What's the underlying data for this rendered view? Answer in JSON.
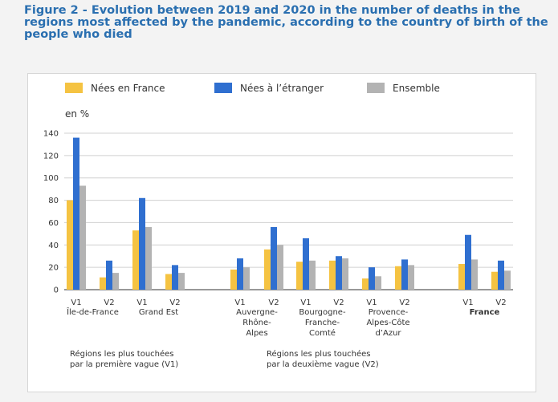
{
  "title": "Figure 2 - Evolution between 2019 and 2020 in the number of deaths in the regions most affected by the pandemic, according to the country of birth of the people who died",
  "chart_data": {
    "type": "bar",
    "unit_label": "en %",
    "ylim": [
      0,
      140
    ],
    "yticks": [
      0,
      20,
      40,
      60,
      80,
      100,
      120,
      140
    ],
    "grid": true,
    "legend_position": "top",
    "series": [
      {
        "name": "Nées en France",
        "color": "#f5c342",
        "values": [
          80,
          11,
          53,
          14,
          18,
          36,
          25,
          26,
          10,
          21,
          23,
          16
        ]
      },
      {
        "name": "Nées à l’étranger",
        "color": "#2f6fd0",
        "values": [
          136,
          26,
          82,
          22,
          28,
          56,
          46,
          30,
          20,
          27,
          49,
          26
        ]
      },
      {
        "name": "Ensemble",
        "color": "#b3b3b3",
        "values": [
          93,
          15,
          56,
          15,
          20,
          40,
          26,
          28,
          12,
          22,
          27,
          17
        ]
      }
    ],
    "categories": [
      "V1",
      "V2",
      "V1",
      "V2",
      "V1",
      "V2",
      "V1",
      "V2",
      "V1",
      "V2",
      "V1",
      "V2"
    ],
    "groups": [
      {
        "lines": [
          "Île-de-France"
        ],
        "bold": false
      },
      {
        "lines": [
          "Grand Est"
        ],
        "bold": false
      },
      {
        "lines": [
          "Auvergne-",
          "Rhône-",
          "Alpes"
        ],
        "bold": false
      },
      {
        "lines": [
          "Bourgogne-",
          "Franche-",
          "Comté"
        ],
        "bold": false
      },
      {
        "lines": [
          "Provence-",
          "Alpes-Côte",
          "d’Azur"
        ],
        "bold": false
      },
      {
        "lines": [
          "France"
        ],
        "bold": true
      }
    ],
    "annotations": [
      {
        "lines": [
          "Régions les plus touchées",
          "par la première vague (V1)"
        ]
      },
      {
        "lines": [
          "Régions les plus touchées",
          "par la deuxième vague (V2)"
        ]
      }
    ]
  }
}
